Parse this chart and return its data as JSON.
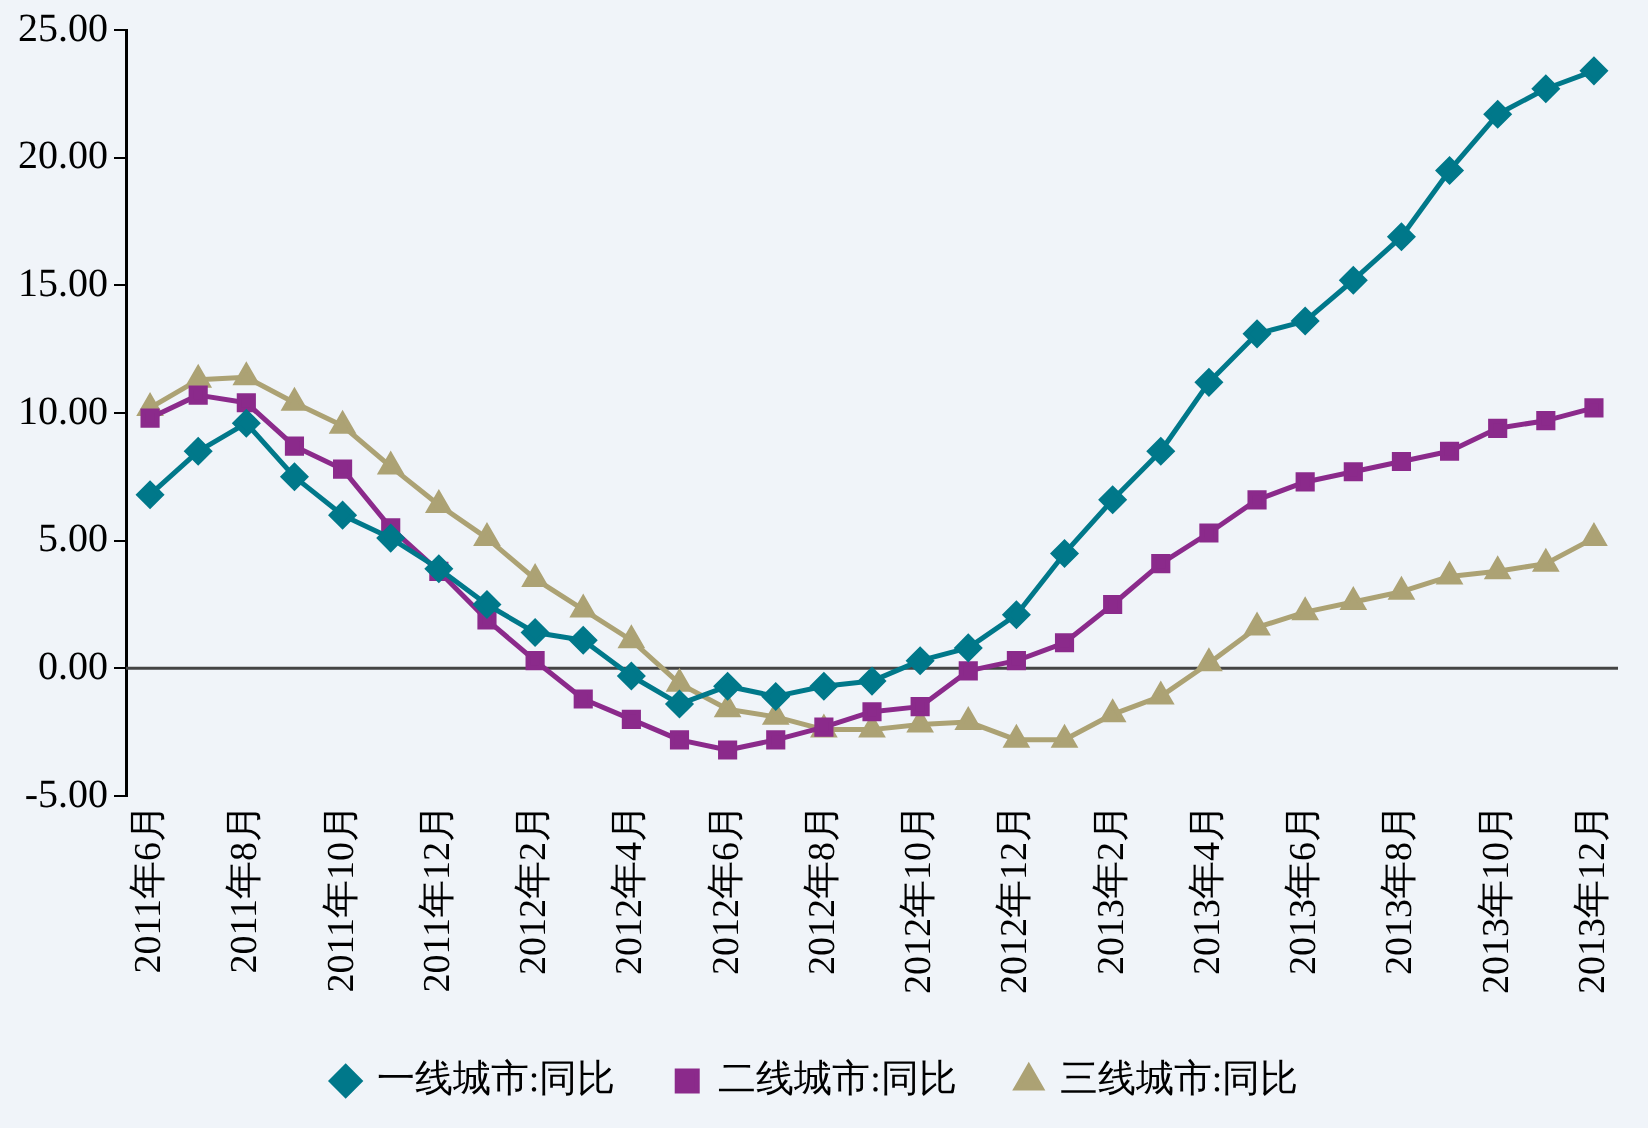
{
  "chart_data": {
    "type": "line",
    "categories": [
      "2011年6月",
      null,
      "2011年8月",
      null,
      "2011年10月",
      null,
      "2011年12月",
      null,
      "2012年2月",
      null,
      "2012年4月",
      null,
      "2012年6月",
      null,
      "2012年8月",
      null,
      "2012年10月",
      null,
      "2012年12月",
      null,
      "2013年2月",
      null,
      "2013年4月",
      null,
      "2013年6月",
      null,
      "2013年8月",
      null,
      "2013年10月",
      null,
      "2013年12月"
    ],
    "series": [
      {
        "name": "一线城市:同比",
        "color": "#00788a",
        "marker": "diamond",
        "values": [
          6.8,
          8.5,
          9.6,
          7.5,
          6.0,
          5.1,
          3.9,
          2.5,
          1.4,
          1.1,
          -0.3,
          -1.4,
          -0.7,
          -1.1,
          -0.7,
          -0.5,
          0.3,
          0.8,
          2.1,
          4.5,
          6.6,
          8.5,
          11.2,
          13.1,
          13.6,
          15.2,
          16.9,
          19.5,
          21.7,
          22.7,
          23.4
        ]
      },
      {
        "name": "二线城市:同比",
        "color": "#8b2a8b",
        "marker": "square",
        "values": [
          9.8,
          10.7,
          10.4,
          8.7,
          7.8,
          5.5,
          3.8,
          1.9,
          0.3,
          -1.2,
          -2.0,
          -2.8,
          -3.2,
          -2.8,
          -2.3,
          -1.7,
          -1.5,
          -0.1,
          0.3,
          1.0,
          2.5,
          4.1,
          5.3,
          6.6,
          7.3,
          7.7,
          8.1,
          8.5,
          9.4,
          9.7,
          10.2
        ]
      },
      {
        "name": "三线城市:同比",
        "color": "#aca274",
        "marker": "triangle",
        "values": [
          10.2,
          11.3,
          11.4,
          10.4,
          9.5,
          7.9,
          6.4,
          5.1,
          3.5,
          2.3,
          1.1,
          -0.6,
          -1.6,
          -1.9,
          -2.4,
          -2.4,
          -2.2,
          -2.1,
          -2.8,
          -2.8,
          -1.8,
          -1.1,
          0.2,
          1.6,
          2.2,
          2.6,
          3.0,
          3.6,
          3.8,
          4.1,
          5.1
        ]
      }
    ],
    "ylim": [
      -5,
      25
    ],
    "yticks": [
      {
        "value": -5,
        "label": "-5.00"
      },
      {
        "value": 0,
        "label": "0.00"
      },
      {
        "value": 5,
        "label": "5.00"
      },
      {
        "value": 10,
        "label": "10.00"
      },
      {
        "value": 15,
        "label": "15.00"
      },
      {
        "value": 20,
        "label": "20.00"
      },
      {
        "value": 25,
        "label": "25.00"
      }
    ],
    "grid": false,
    "ref_lines": [
      {
        "axis": "y",
        "value": 0
      }
    ],
    "legend": "bottom"
  }
}
